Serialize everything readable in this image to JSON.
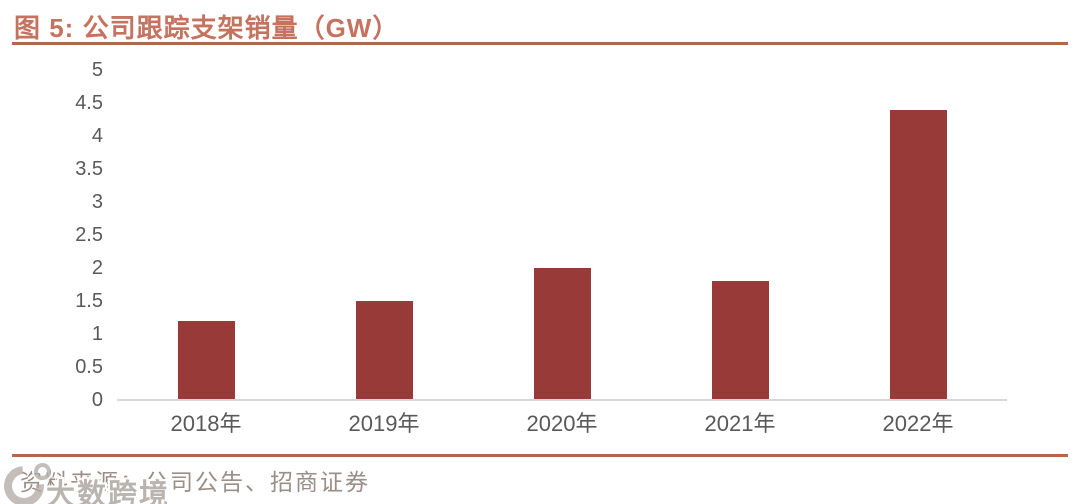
{
  "header": {
    "title": "图 5: 公司跟踪支架销量（GW）"
  },
  "footer": {
    "source": "资料来源：公司公告、招商证券"
  },
  "watermark": {
    "text": "大数跨境",
    "logo": "crescent-logo"
  },
  "colors": {
    "bar": "#973a38",
    "accent_rule": "#b4674d",
    "title_text": "#c5735e",
    "axis_text": "#595959",
    "axis_line": "#d6d6d6",
    "source_text": "#9a8e86"
  },
  "chart_data": {
    "type": "bar",
    "title": "公司跟踪支架销量（GW）",
    "categories": [
      "2018年",
      "2019年",
      "2020年",
      "2021年",
      "2022年"
    ],
    "values": [
      1.2,
      1.5,
      2.0,
      1.8,
      4.4
    ],
    "xlabel": "",
    "ylabel": "",
    "ylim": [
      0,
      5
    ],
    "ytick_step": 0.5,
    "yticks": [
      "5",
      "4.5",
      "4",
      "3.5",
      "3",
      "2.5",
      "2",
      "1.5",
      "1",
      "0.5",
      "0"
    ],
    "grid": false,
    "legend": false
  }
}
